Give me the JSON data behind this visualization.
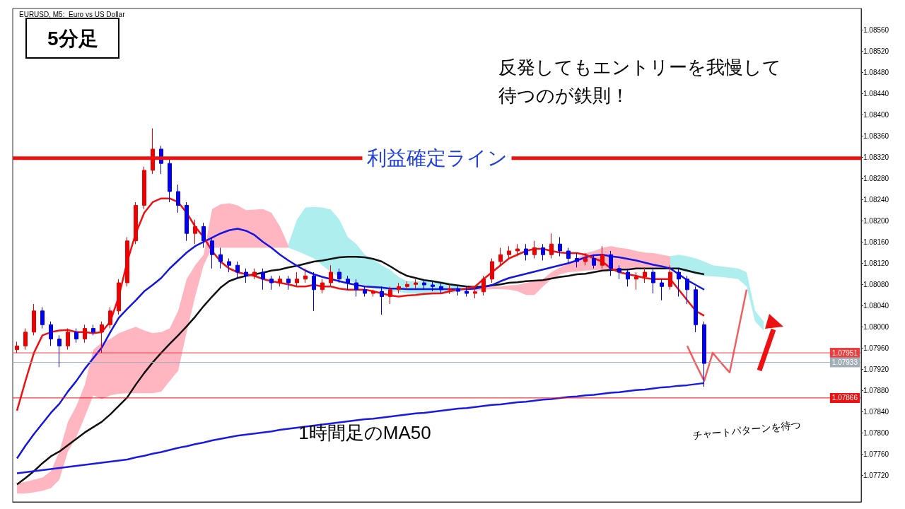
{
  "chart_data": {
    "type": "candlestick",
    "title": "5分足",
    "subtitle": "EURUSD, M5:  Euro vs US Dollar",
    "annotations": [
      "反発してもエントリーを我慢して待つのが鉄則！",
      "チャートパターンを待つ"
    ],
    "categories": [
      null,
      null,
      null,
      null,
      null,
      null,
      null,
      null,
      null,
      null,
      null,
      null,
      null,
      null,
      null,
      null,
      null,
      null,
      null,
      null,
      null,
      null,
      null,
      null,
      null,
      null,
      null,
      null,
      null,
      null,
      null,
      null,
      null,
      null,
      null,
      null,
      null,
      null,
      null,
      null,
      null,
      null,
      null,
      null,
      null,
      null,
      null,
      null,
      null,
      null,
      null,
      null,
      null,
      null,
      null,
      null,
      null,
      null,
      null,
      null,
      null,
      null,
      null,
      null,
      null,
      null,
      null,
      null,
      null,
      null,
      null,
      null,
      null,
      null,
      null,
      null,
      null,
      null,
      null,
      null,
      null,
      null,
      null,
      null,
      null,
      null,
      null,
      null,
      null,
      null,
      null,
      null,
      null,
      null,
      null,
      null,
      null,
      null,
      null,
      null
    ],
    "ohlc": [
      [
        1.07957,
        1.07972,
        1.07951,
        1.07964
      ],
      [
        1.07964,
        1.07997,
        1.07957,
        1.0799
      ],
      [
        1.0799,
        1.08043,
        1.07984,
        1.0803
      ],
      [
        1.0803,
        1.08037,
        1.07997,
        1.08004
      ],
      [
        1.08004,
        1.0801,
        1.07964,
        1.07977
      ],
      [
        1.07977,
        1.07984,
        1.07924,
        1.07964
      ],
      [
        1.07964,
        1.07997,
        1.07957,
        1.0799
      ],
      [
        1.0799,
        1.07997,
        1.0797,
        1.07977
      ],
      [
        1.07977,
        1.08004,
        1.0797,
        1.07997
      ],
      [
        1.07997,
        1.08004,
        1.07984,
        1.0799
      ],
      [
        1.0799,
        1.0801,
        1.07951,
        1.08004
      ],
      [
        1.08004,
        1.08037,
        1.07997,
        1.0803
      ],
      [
        1.0803,
        1.0809,
        1.08023,
        1.08083
      ],
      [
        1.08083,
        1.08169,
        1.08076,
        1.08162
      ],
      [
        1.08162,
        1.08235,
        1.08156,
        1.08229
      ],
      [
        1.08229,
        1.08302,
        1.08222,
        1.08295
      ],
      [
        1.08295,
        1.08374,
        1.08288,
        1.08335
      ],
      [
        1.08335,
        1.08341,
        1.08288,
        1.08308
      ],
      [
        1.08308,
        1.08315,
        1.08235,
        1.08255
      ],
      [
        1.08255,
        1.08268,
        1.08215,
        1.08229
      ],
      [
        1.08229,
        1.08235,
        1.08162,
        1.08176
      ],
      [
        1.08176,
        1.08202,
        1.08156,
        1.08189
      ],
      [
        1.08189,
        1.08196,
        1.08149,
        1.08162
      ],
      [
        1.08162,
        1.08169,
        1.0811,
        1.08136
      ],
      [
        1.08136,
        1.08149,
        1.0811,
        1.08123
      ],
      [
        1.08123,
        1.08129,
        1.08103,
        1.08116
      ],
      [
        1.08116,
        1.08123,
        1.0809,
        1.08103
      ],
      [
        1.08103,
        1.0811,
        1.08083,
        1.08096
      ],
      [
        1.08096,
        1.0811,
        1.0809,
        1.08103
      ],
      [
        1.08103,
        1.0811,
        1.0807,
        1.0809
      ],
      [
        1.0809,
        1.08096,
        1.0807,
        1.08083
      ],
      [
        1.08083,
        1.08096,
        1.08076,
        1.0809
      ],
      [
        1.0809,
        1.08096,
        1.0807,
        1.08083
      ],
      [
        1.08083,
        1.08103,
        1.08076,
        1.0809
      ],
      [
        1.0809,
        1.0811,
        1.08083,
        1.08096
      ],
      [
        1.08096,
        1.08103,
        1.0803,
        1.0807
      ],
      [
        1.0807,
        1.0809,
        1.08063,
        1.08083
      ],
      [
        1.08083,
        1.08116,
        1.08076,
        1.08103
      ],
      [
        1.08103,
        1.0811,
        1.08083,
        1.0809
      ],
      [
        1.0809,
        1.08096,
        1.0807,
        1.08083
      ],
      [
        1.08083,
        1.0809,
        1.08057,
        1.0807
      ],
      [
        1.0807,
        1.08076,
        1.08057,
        1.08063
      ],
      [
        1.08063,
        1.0807,
        1.08057,
        1.08067
      ],
      [
        1.08067,
        1.08076,
        1.08023,
        1.08057
      ],
      [
        1.08057,
        1.08076,
        1.08043,
        1.0807
      ],
      [
        1.0807,
        1.08083,
        1.08063,
        1.08076
      ],
      [
        1.08076,
        1.08086,
        1.0807,
        1.0808
      ],
      [
        1.0808,
        1.0809,
        1.08072,
        1.08083
      ],
      [
        1.08083,
        1.08088,
        1.0807,
        1.08079
      ],
      [
        1.08079,
        1.08086,
        1.08067,
        1.08076
      ],
      [
        1.08076,
        1.08083,
        1.08063,
        1.0807
      ],
      [
        1.0807,
        1.0808,
        1.08062,
        1.08072
      ],
      [
        1.08072,
        1.08078,
        1.08059,
        1.08067
      ],
      [
        1.08067,
        1.08075,
        1.08057,
        1.08063
      ],
      [
        1.08063,
        1.08076,
        1.08054,
        1.08066
      ],
      [
        1.08066,
        1.08096,
        1.08059,
        1.0809
      ],
      [
        1.0809,
        1.08129,
        1.08083,
        1.08123
      ],
      [
        1.08123,
        1.08149,
        1.08116,
        1.08136
      ],
      [
        1.08136,
        1.08152,
        1.08129,
        1.08143
      ],
      [
        1.08143,
        1.08156,
        1.08133,
        1.08147
      ],
      [
        1.08147,
        1.08156,
        1.08125,
        1.08136
      ],
      [
        1.08136,
        1.08162,
        1.08129,
        1.08149
      ],
      [
        1.08149,
        1.08156,
        1.08125,
        1.08136
      ],
      [
        1.08136,
        1.08176,
        1.08129,
        1.08156
      ],
      [
        1.08156,
        1.08169,
        1.08133,
        1.08143
      ],
      [
        1.08143,
        1.08149,
        1.0812,
        1.08129
      ],
      [
        1.08129,
        1.08139,
        1.08112,
        1.08123
      ],
      [
        1.08123,
        1.08139,
        1.08116,
        1.08129
      ],
      [
        1.08129,
        1.08136,
        1.0811,
        1.08116
      ],
      [
        1.08116,
        1.08152,
        1.0811,
        1.08136
      ],
      [
        1.08136,
        1.08143,
        1.08096,
        1.0811
      ],
      [
        1.0811,
        1.08116,
        1.0809,
        1.08103
      ],
      [
        1.08103,
        1.0811,
        1.08076,
        1.0809
      ],
      [
        1.0809,
        1.08103,
        1.0807,
        1.08094
      ],
      [
        1.08094,
        1.08112,
        1.08083,
        1.08103
      ],
      [
        1.08103,
        1.0811,
        1.08063,
        1.08083
      ],
      [
        1.08083,
        1.0809,
        1.0805,
        1.08076
      ],
      [
        1.08076,
        1.08116,
        1.0807,
        1.08103
      ],
      [
        1.08103,
        1.0811,
        1.08057,
        1.0809
      ],
      [
        1.0809,
        1.08096,
        1.08043,
        1.0807
      ],
      [
        1.0807,
        1.08076,
        1.0799,
        1.08004
      ],
      [
        1.08004,
        1.0801,
        1.07887,
        1.07931
      ],
      null,
      null,
      null,
      null,
      null,
      null,
      null,
      null,
      null,
      null,
      null,
      null,
      null,
      null,
      null,
      null,
      null,
      null
    ],
    "colors": [
      "#ee0000",
      "#ee0000",
      "#ee0000",
      "#0000ee",
      "#0000ee",
      "#0000ee",
      "#ee0000",
      "#0000ee",
      "#ee0000",
      "#0000ee",
      "#ee0000",
      "#ee0000",
      "#ee0000",
      "#ee0000",
      "#ee0000",
      "#ee0000",
      "#ee0000",
      "#0000ee",
      "#0000ee",
      "#0000ee",
      "#0000ee",
      "#ee0000",
      "#0000ee",
      "#0000ee",
      "#0000ee",
      "#0000ee",
      "#0000ee",
      "#0000ee",
      "#ee0000",
      "#0000ee",
      "#0000ee",
      "#ee0000",
      "#0000ee",
      "#ee0000",
      "#ee0000",
      "#0000ee",
      "#ee0000",
      "#ee0000",
      "#0000ee",
      "#0000ee",
      "#0000ee",
      "#0000ee",
      "#ee0000",
      "#0000ee",
      "#ee0000",
      "#ee0000",
      "#ee0000",
      "#ee0000",
      "#0000ee",
      "#0000ee",
      "#0000ee",
      "#ee0000",
      "#0000ee",
      "#0000ee",
      "#ee0000",
      "#ee0000",
      "#ee0000",
      "#ee0000",
      "#ee0000",
      "#ee0000",
      "#0000ee",
      "#ee0000",
      "#0000ee",
      "#ee0000",
      "#0000ee",
      "#0000ee",
      "#0000ee",
      "#ee0000",
      "#0000ee",
      "#ee0000",
      "#0000ee",
      "#0000ee",
      "#0000ee",
      "#ee0000",
      "#ee0000",
      "#0000ee",
      "#0000ee",
      "#ee0000",
      "#0000ee",
      "#0000ee",
      "#0000ee",
      "#0000ee",
      null,
      null,
      null,
      null,
      null,
      null,
      null,
      null,
      null,
      null,
      null,
      null,
      null,
      null,
      null,
      null,
      null,
      null
    ],
    "series": [
      {
        "type": "area",
        "color": "#ffb6c1",
        "values": [
          null,
          null,
          null,
          null,
          null,
          null,
          null,
          null,
          null,
          null,
          null,
          null,
          null,
          null,
          null,
          null,
          null,
          null,
          null,
          null,
          null,
          null,
          null,
          null,
          null,
          null,
          null,
          null,
          null,
          null,
          null,
          null,
          null,
          null,
          null,
          null,
          null,
          null,
          null,
          null,
          null,
          null,
          null,
          null,
          null,
          null,
          null,
          null,
          null,
          null,
          null,
          null,
          null,
          null,
          null,
          null,
          null,
          null,
          null,
          null,
          null,
          null,
          null,
          null,
          null,
          null,
          null,
          null,
          null,
          null,
          null,
          null,
          null,
          null,
          null,
          null,
          null,
          null,
          null,
          null,
          null,
          null,
          null,
          null,
          null,
          null,
          null,
          null,
          null,
          null,
          null,
          null,
          null,
          null,
          null,
          null,
          null,
          null,
          null,
          null
        ],
        "upper": [
          1.07705,
          1.07708,
          1.07712,
          1.07716,
          1.07728,
          1.07765,
          1.07821,
          1.07851,
          1.07891,
          1.07957,
          1.0797,
          1.07977,
          1.07988,
          1.07994,
          1.08,
          1.07993,
          1.07988,
          1.0799,
          1.07997,
          1.0803,
          1.0809,
          1.08116,
          1.08136,
          1.08222,
          1.08231,
          1.08233,
          1.08229,
          1.0822,
          1.08221,
          1.08222,
          1.08215,
          1.08189,
          1.08153,
          null,
          null,
          null,
          null,
          null,
          null,
          null,
          null,
          null,
          null,
          null,
          null,
          null,
          null,
          null,
          null,
          null,
          null,
          null,
          null,
          1.08072,
          1.08075,
          1.08076,
          1.08076,
          1.08076,
          1.08078,
          1.08079,
          1.08083,
          1.08086,
          1.0809,
          1.08103,
          1.08112,
          1.0812,
          1.08129,
          1.08139,
          1.08143,
          1.08149,
          1.08152,
          1.08149,
          1.08147,
          1.08143,
          1.0814,
          1.08139,
          1.08136,
          1.08133,
          null,
          null,
          null,
          null,
          null,
          null,
          null,
          null,
          null,
          null,
          null,
          null,
          null,
          null,
          null,
          null,
          null,
          null,
          null,
          null,
          null,
          null
        ],
        "lower": [
          1.07686,
          1.07686,
          1.07688,
          1.07691,
          1.07696,
          1.07712,
          1.07765,
          1.07792,
          1.07831,
          1.07871,
          1.07864,
          1.07871,
          1.07874,
          1.07875,
          1.07875,
          1.07875,
          1.07875,
          1.07878,
          1.07898,
          1.07917,
          1.0799,
          1.08057,
          1.08116,
          1.08149,
          1.08149,
          1.08149,
          1.08149,
          1.08149,
          1.08149,
          1.08149,
          1.08149,
          1.08149,
          1.08149,
          null,
          null,
          null,
          null,
          null,
          null,
          null,
          null,
          null,
          null,
          null,
          null,
          null,
          null,
          null,
          null,
          null,
          null,
          null,
          null,
          1.0807,
          1.08068,
          1.0807,
          1.08071,
          1.08071,
          1.0807,
          1.08067,
          1.0806,
          1.0806,
          1.08076,
          1.0809,
          1.08099,
          1.08103,
          1.08104,
          1.08106,
          1.08107,
          1.08107,
          1.08108,
          1.0811,
          1.0811,
          1.08111,
          1.08112,
          1.08112,
          1.08112,
          1.08112,
          null,
          null,
          null,
          null,
          null,
          null,
          null,
          null,
          null,
          null,
          null,
          null,
          null,
          null,
          null,
          null,
          null,
          null,
          null,
          null,
          null,
          null
        ]
      },
      {
        "type": "area",
        "color": "#afeeee",
        "values": [
          null,
          null,
          null,
          null,
          null,
          null,
          null,
          null,
          null,
          null,
          null,
          null,
          null,
          null,
          null,
          null,
          null,
          null,
          null,
          null,
          null,
          null,
          null,
          null,
          null,
          null,
          null,
          null,
          null,
          null,
          null,
          null,
          null,
          null,
          null,
          null,
          null,
          null,
          null,
          null,
          null,
          null,
          null,
          null,
          null,
          null,
          null,
          null,
          null,
          null,
          null,
          null,
          null,
          null,
          null,
          null,
          null,
          null,
          null,
          null,
          null,
          null,
          null,
          null,
          null,
          null,
          null,
          null,
          null,
          null,
          null,
          null,
          null,
          null,
          null,
          null,
          null,
          null,
          null,
          null,
          null,
          null,
          null,
          null,
          null,
          null,
          null,
          null,
          null,
          null,
          null,
          null,
          null,
          null,
          null,
          null,
          null,
          null,
          null,
          null
        ],
        "upper": [
          null,
          null,
          null,
          null,
          null,
          null,
          null,
          null,
          null,
          null,
          null,
          null,
          null,
          null,
          null,
          null,
          null,
          null,
          null,
          null,
          null,
          null,
          null,
          null,
          null,
          null,
          null,
          null,
          null,
          null,
          null,
          null,
          1.08156,
          1.08202,
          1.08225,
          1.08226,
          1.08225,
          1.08221,
          1.08202,
          1.08169,
          1.08156,
          1.08136,
          1.08127,
          1.08116,
          1.08107,
          1.08094,
          1.08086,
          1.08086,
          1.08086,
          1.08086,
          1.08086,
          1.08083,
          1.08079,
          1.08072,
          null,
          null,
          null,
          null,
          null,
          null,
          null,
          null,
          null,
          null,
          null,
          null,
          null,
          null,
          null,
          null,
          null,
          null,
          null,
          null,
          null,
          null,
          null,
          1.08133,
          1.08136,
          1.08133,
          1.08129,
          1.08123,
          1.08116,
          1.08114,
          1.08112,
          1.0811,
          1.08103,
          1.0803,
          1.0801,
          null,
          null,
          null,
          null,
          null,
          null,
          null,
          null,
          null,
          null,
          null
        ],
        "lower": [
          null,
          null,
          null,
          null,
          null,
          null,
          null,
          null,
          null,
          null,
          null,
          null,
          null,
          null,
          null,
          null,
          null,
          null,
          null,
          null,
          null,
          null,
          null,
          null,
          null,
          null,
          null,
          null,
          null,
          null,
          null,
          null,
          1.08149,
          1.08143,
          1.08136,
          1.08129,
          1.08116,
          1.08103,
          1.08094,
          1.08086,
          1.08083,
          1.08078,
          1.08072,
          1.0807,
          1.08067,
          1.08066,
          1.08063,
          1.08062,
          1.0806,
          1.0806,
          1.08062,
          1.08063,
          1.08066,
          1.0807,
          null,
          null,
          null,
          null,
          null,
          null,
          null,
          null,
          null,
          null,
          null,
          null,
          null,
          null,
          null,
          null,
          null,
          null,
          null,
          null,
          null,
          null,
          null,
          1.08112,
          1.08106,
          1.08103,
          1.08099,
          1.08096,
          1.08095,
          1.08094,
          1.08092,
          1.0809,
          1.08076,
          1.0801,
          1.07993,
          null,
          null,
          null,
          null,
          null,
          null,
          null,
          null,
          null,
          null,
          null
        ]
      },
      {
        "type": "line",
        "color": "#111111",
        "values": [
          1.07703,
          1.07715,
          1.07728,
          1.07743,
          1.07756,
          1.07765,
          1.07777,
          1.07789,
          1.07801,
          1.07811,
          1.07821,
          1.07835,
          1.07851,
          1.07867,
          1.07891,
          1.07913,
          1.07933,
          1.07951,
          1.07968,
          1.07984,
          1.08001,
          1.08019,
          1.08039,
          1.08057,
          1.08074,
          1.08086,
          1.08092,
          1.08096,
          1.08099,
          1.08102,
          1.08106,
          1.08108,
          1.08112,
          1.08115,
          1.08119,
          1.08123,
          1.08125,
          1.08128,
          1.08131,
          1.08132,
          1.08132,
          1.08131,
          1.08128,
          1.08123,
          1.08114,
          1.08104,
          1.08096,
          1.08092,
          1.08088,
          1.08086,
          1.08083,
          1.0808,
          1.08078,
          1.08076,
          1.08075,
          1.08076,
          1.08078,
          1.0808,
          1.08083,
          1.08084,
          1.08086,
          1.08087,
          1.08088,
          1.08091,
          1.08094,
          1.08096,
          1.08099,
          1.081,
          1.08103,
          1.08106,
          1.08107,
          1.08108,
          1.08108,
          1.0811,
          1.0811,
          1.0811,
          1.0811,
          1.0811,
          1.0811,
          1.08106,
          1.08102,
          1.08099,
          null,
          null,
          null,
          null,
          null,
          null,
          null,
          null,
          null,
          null,
          null,
          null,
          null,
          null,
          null,
          null,
          null,
          null
        ]
      },
      {
        "type": "line",
        "color": "#1515e0",
        "values": [
          1.07752,
          1.07776,
          1.07798,
          1.07818,
          1.07838,
          1.07855,
          1.07878,
          1.07898,
          1.07921,
          1.07941,
          1.07961,
          1.0799,
          1.08017,
          1.08034,
          1.0805,
          1.08067,
          1.08079,
          1.08092,
          1.0811,
          1.08125,
          1.0814,
          1.08152,
          1.0816,
          1.08168,
          1.08176,
          1.08182,
          1.08185,
          1.08181,
          1.08173,
          1.0816,
          1.08149,
          1.08136,
          1.08125,
          1.08115,
          1.08106,
          1.08099,
          1.08094,
          1.0809,
          1.08086,
          1.08082,
          1.08079,
          1.08076,
          1.08075,
          1.08074,
          1.08072,
          1.08072,
          1.08071,
          1.08071,
          1.08071,
          1.08071,
          1.08071,
          1.08071,
          1.08071,
          1.08071,
          1.08072,
          1.08075,
          1.08079,
          1.08086,
          1.08092,
          1.08096,
          1.081,
          1.08104,
          1.08108,
          1.08112,
          1.08116,
          1.0812,
          1.08125,
          1.08131,
          1.08135,
          1.08136,
          1.08133,
          1.08131,
          1.08128,
          1.08125,
          1.08121,
          1.08117,
          1.08114,
          1.0811,
          1.08099,
          1.08088,
          1.08079,
          1.0807,
          null,
          null,
          null,
          null,
          null,
          null,
          null,
          null,
          null,
          null,
          null,
          null,
          null,
          null,
          null,
          null,
          null,
          null
        ]
      },
      {
        "type": "line",
        "color": "#ee1111",
        "values": [
          1.07842,
          1.07898,
          1.07951,
          1.07984,
          1.0799,
          1.07993,
          1.07994,
          1.0799,
          1.0799,
          1.07988,
          1.0799,
          1.0801,
          1.08057,
          1.08123,
          1.08176,
          1.08215,
          1.08235,
          1.08242,
          1.08242,
          1.08235,
          1.08215,
          1.08189,
          1.08169,
          1.08143,
          1.08123,
          1.0811,
          1.08103,
          1.08099,
          1.08096,
          1.0809,
          1.08086,
          1.08083,
          1.0808,
          1.08076,
          1.08076,
          1.08079,
          1.08076,
          1.08076,
          1.08072,
          1.0807,
          1.0807,
          1.0807,
          1.08067,
          1.08063,
          1.08059,
          1.08057,
          1.08059,
          1.0806,
          1.08062,
          1.08063,
          1.08063,
          1.08067,
          1.0807,
          1.08072,
          1.08076,
          1.0809,
          1.08103,
          1.08116,
          1.08129,
          1.08136,
          1.08143,
          1.08147,
          1.08147,
          1.08143,
          1.0814,
          1.08139,
          1.08139,
          1.08136,
          1.08129,
          1.08123,
          1.0811,
          1.08103,
          1.08099,
          1.08096,
          1.08092,
          1.0809,
          1.0809,
          1.0809,
          1.0807,
          1.0805,
          1.0803,
          1.08021,
          null,
          null,
          null,
          null,
          null,
          null,
          null,
          null,
          null,
          null,
          null,
          null,
          null,
          null,
          null,
          null,
          null,
          null
        ]
      },
      {
        "type": "line",
        "color": "#f06060",
        "values": [
          null,
          null,
          null,
          null,
          null,
          null,
          null,
          null,
          null,
          null,
          null,
          null,
          null,
          null,
          null,
          null,
          null,
          null,
          null,
          null,
          null,
          null,
          null,
          null,
          null,
          null,
          null,
          null,
          null,
          null,
          null,
          null,
          null,
          null,
          null,
          null,
          null,
          null,
          null,
          null,
          null,
          null,
          null,
          null,
          null,
          null,
          null,
          null,
          null,
          null,
          null,
          null,
          null,
          null,
          null,
          null,
          null,
          null,
          null,
          null,
          null,
          null,
          null,
          null,
          null,
          null,
          null,
          null,
          null,
          null,
          null,
          null,
          null,
          null,
          null,
          null,
          null,
          null,
          null,
          1.07964,
          1.0793,
          1.07898,
          1.07951,
          1.07932,
          1.07914,
          1.07992,
          1.0807,
          null,
          null,
          null,
          null,
          null,
          null,
          null,
          null,
          null,
          null,
          null,
          null,
          null
        ]
      },
      {
        "type": "line",
        "name": "1時間足のMA50",
        "color": "#1a1ae6",
        "values": [
          1.07724,
          1.07726,
          1.07728,
          1.0773,
          1.07732,
          1.07734,
          1.07736,
          1.07738,
          1.0774,
          1.07742,
          1.07744,
          1.07746,
          1.07748,
          1.0775,
          1.07754,
          1.07757,
          1.07761,
          1.07764,
          1.07768,
          1.07772,
          1.07775,
          1.07779,
          1.07782,
          1.07786,
          1.07789,
          1.07792,
          1.07795,
          1.07797,
          1.07799,
          1.07801,
          1.07803,
          1.07806,
          1.07808,
          1.0781,
          1.07812,
          1.07814,
          1.07816,
          1.07818,
          1.0782,
          1.07822,
          1.07824,
          1.07826,
          1.07827,
          1.07829,
          1.07831,
          1.07833,
          1.07835,
          1.07837,
          1.07838,
          1.0784,
          1.07842,
          1.07844,
          1.07846,
          1.07847,
          1.07849,
          1.07851,
          1.07853,
          1.07854,
          1.07856,
          1.07858,
          1.07859,
          1.07861,
          1.07863,
          1.07864,
          1.07866,
          1.07868,
          1.07869,
          1.07871,
          1.07872,
          1.07874,
          1.07876,
          1.07877,
          1.07879,
          1.07881,
          1.07882,
          1.07884,
          1.07886,
          1.07887,
          1.07889,
          1.0789,
          1.07892,
          1.07894,
          null,
          null,
          null,
          null,
          null,
          null,
          null,
          null,
          null,
          null,
          null,
          null,
          null,
          null,
          null,
          null,
          null,
          null
        ]
      }
    ],
    "ref_lines": [
      {
        "axis": "y",
        "value": 1.08318,
        "label": "利益確定ライン",
        "color": "#ee1111"
      },
      {
        "axis": "y",
        "value": 1.07951,
        "label": "1.07951",
        "color": "#f03c3c"
      },
      {
        "axis": "y",
        "value": 1.07933,
        "label": "1.07933",
        "color": "#a3adb8"
      },
      {
        "axis": "y",
        "value": 1.07866,
        "label": "1.07866",
        "color": "#ee1111"
      }
    ],
    "ylim": [
      1.0767,
      1.086
    ],
    "yticks": [
      {
        "value": 1.0772,
        "label": "1.07720"
      },
      {
        "value": 1.0776,
        "label": "1.07760"
      },
      {
        "value": 1.078,
        "label": "1.07800"
      },
      {
        "value": 1.0784,
        "label": "1.07840"
      },
      {
        "value": 1.0788,
        "label": "1.07880"
      },
      {
        "value": 1.0792,
        "label": "1.07920"
      },
      {
        "value": 1.0796,
        "label": "1.07960"
      },
      {
        "value": 1.08,
        "label": "1.08000"
      },
      {
        "value": 1.0804,
        "label": "1.08040"
      },
      {
        "value": 1.0808,
        "label": "1.08080"
      },
      {
        "value": 1.0812,
        "label": "1.08120"
      },
      {
        "value": 1.0816,
        "label": "1.08160"
      },
      {
        "value": 1.082,
        "label": "1.08200"
      },
      {
        "value": 1.0824,
        "label": "1.08240"
      },
      {
        "value": 1.0828,
        "label": "1.08280"
      },
      {
        "value": 1.0832,
        "label": "1.08320"
      },
      {
        "value": 1.0836,
        "label": "1.08360"
      },
      {
        "value": 1.084,
        "label": "1.08400"
      },
      {
        "value": 1.0844,
        "label": "1.08440"
      },
      {
        "value": 1.0848,
        "label": "1.08480"
      },
      {
        "value": 1.0852,
        "label": "1.08520"
      },
      {
        "value": 1.0856,
        "label": "1.08560"
      }
    ],
    "tick_labels": "y",
    "grid": false,
    "legend": false,
    "marker": "none",
    "line_style": "solid"
  }
}
